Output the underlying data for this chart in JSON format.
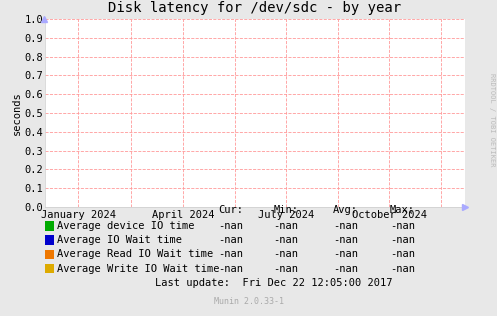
{
  "title": "Disk latency for /dev/sdc - by year",
  "ylabel": "seconds",
  "bg_color": "#e8e8e8",
  "plot_bg_color": "#ffffff",
  "grid_color": "#ff9999",
  "border_color": "#aaaaaa",
  "ylim": [
    0.0,
    1.0
  ],
  "yticks": [
    0.0,
    0.1,
    0.2,
    0.3,
    0.4,
    0.5,
    0.6,
    0.7,
    0.8,
    0.9,
    1.0
  ],
  "xtick_labels": [
    "January 2024",
    "April 2024",
    "July 2024",
    "October 2024"
  ],
  "xtick_positions": [
    0.08,
    0.33,
    0.575,
    0.82
  ],
  "vlines_x": [
    0.08,
    0.205,
    0.33,
    0.452,
    0.575,
    0.698,
    0.82,
    0.943
  ],
  "legend_entries": [
    {
      "label": "Average device IO time",
      "color": "#00aa00"
    },
    {
      "label": "Average IO Wait time",
      "color": "#0000cc"
    },
    {
      "label": "Average Read IO Wait time",
      "color": "#ee7700"
    },
    {
      "label": "Average Write IO Wait time",
      "color": "#ddaa00"
    }
  ],
  "table_headers": [
    "Cur:",
    "Min:",
    "Avg:",
    "Max:"
  ],
  "table_row_values": [
    "-nan",
    "-nan",
    "-nan",
    "-nan"
  ],
  "last_update": "Last update:  Fri Dec 22 12:05:00 2017",
  "munin_version": "Munin 2.0.33-1",
  "rrdtool_label": "RRDTOOL / TOBI OETIKER",
  "arrow_color": "#aaaaff",
  "title_fontsize": 10,
  "axis_fontsize": 7.5,
  "legend_fontsize": 7.5,
  "table_fontsize": 7.5,
  "rrd_fontsize": 5.0
}
